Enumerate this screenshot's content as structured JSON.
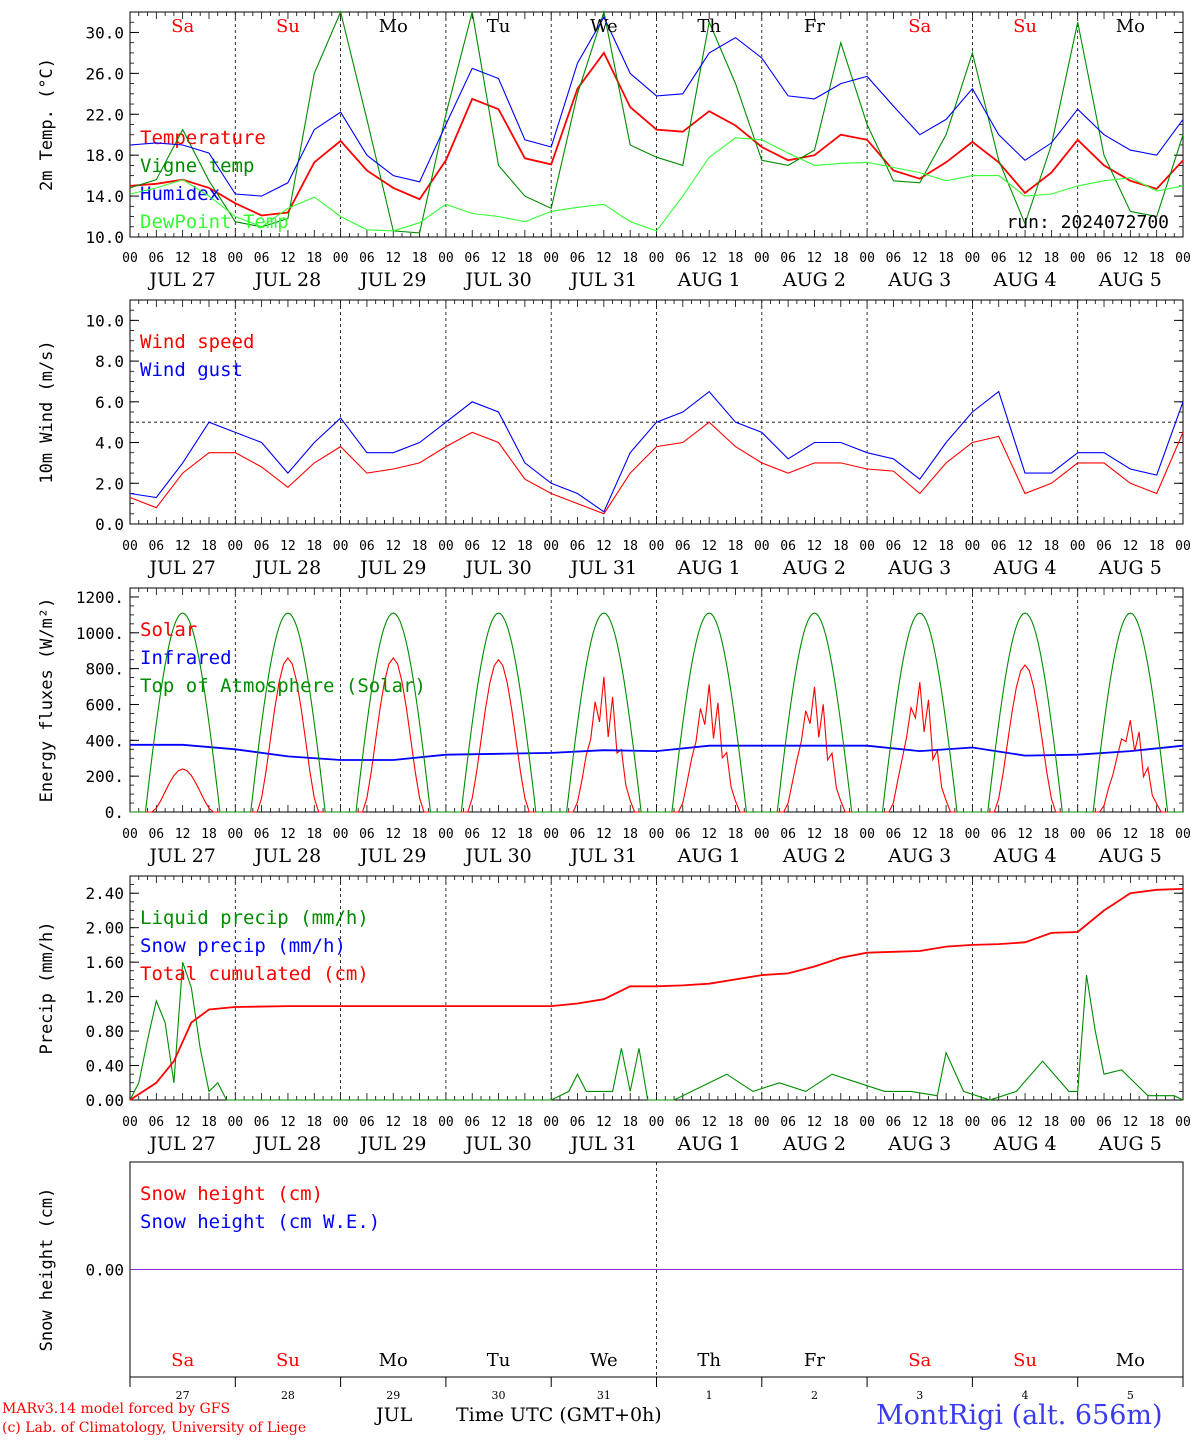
{
  "footer": {
    "model": "MARv3.14 model forced by GFS",
    "copyright": "(c) Lab. of Climatology, University of Liege",
    "axis_title": "Time UTC (GMT+0h)",
    "month": "JUL",
    "station": "MontRigi (alt. 656m)"
  },
  "colors": {
    "red": "#ff0000",
    "green": "#008c00",
    "blue": "#0000ff",
    "lightgreen": "#33ff33",
    "weekend": "#ff0000",
    "weekday": "#000000"
  },
  "chart_data": {
    "x_hour_ticks": [
      "00",
      "06",
      "12",
      "18"
    ],
    "x_end_tick": "00",
    "dates": [
      "JUL 27",
      "JUL 28",
      "JUL 29",
      "JUL 30",
      "JUL 31",
      "AUG  1",
      "AUG  2",
      "AUG  3",
      "AUG  4",
      "AUG  5"
    ],
    "days": [
      {
        "name": "Sa",
        "weekend": true
      },
      {
        "name": "Su",
        "weekend": true
      },
      {
        "name": "Mo",
        "weekend": false
      },
      {
        "name": "Tu",
        "weekend": false
      },
      {
        "name": "We",
        "weekend": false
      },
      {
        "name": "Th",
        "weekend": false
      },
      {
        "name": "Fr",
        "weekend": false
      },
      {
        "name": "Sa",
        "weekend": true
      },
      {
        "name": "Su",
        "weekend": true
      },
      {
        "name": "Mo",
        "weekend": false
      }
    ],
    "day_numbers": [
      "27",
      "28",
      "29",
      "30",
      "31",
      "1",
      "2",
      "3",
      "4",
      "5"
    ],
    "panels": [
      {
        "id": "temperature",
        "type": "line",
        "ylabel": "2m Temp. (°C)",
        "ylim": [
          10,
          32
        ],
        "yticks": [
          10.0,
          14.0,
          18.0,
          22.0,
          26.0,
          30.0
        ],
        "ytick_labels": [
          "10.0",
          "14.0",
          "18.0",
          "22.0",
          "26.0",
          "30.0"
        ],
        "annotation": "run: 2024072700",
        "series": [
          {
            "name": "Temperature",
            "color": "red",
            "hours": [
              0,
              6,
              12,
              18,
              24,
              30,
              36,
              42,
              48,
              54,
              60,
              66,
              72,
              78,
              84,
              90,
              96,
              102,
              108,
              114,
              120,
              126,
              132,
              138,
              144,
              150,
              156,
              162,
              168,
              174,
              180,
              186,
              192,
              198,
              204,
              210,
              216,
              222,
              228,
              234,
              240
            ],
            "values": [
              15.0,
              15.2,
              15.6,
              14.8,
              13.3,
              12.1,
              12.4,
              17.3,
              19.4,
              16.5,
              14.8,
              13.7,
              17.5,
              23.5,
              22.5,
              17.7,
              17.1,
              24.5,
              28.0,
              22.7,
              20.5,
              20.3,
              22.3,
              20.9,
              18.8,
              17.5,
              18.0,
              20.0,
              19.5,
              16.5,
              15.7,
              17.3,
              19.3,
              17.3,
              14.3,
              16.3,
              19.5,
              17.0,
              15.5,
              14.7,
              17.5
            ]
          },
          {
            "name": "Vigne temp",
            "color": "green",
            "hours": [
              0,
              6,
              12,
              18,
              24,
              30,
              36,
              42,
              48,
              54,
              60,
              66,
              72,
              78,
              84,
              90,
              96,
              102,
              108,
              114,
              120,
              126,
              132,
              138,
              144,
              150,
              156,
              162,
              168,
              174,
              180,
              186,
              192,
              198,
              204,
              210,
              216,
              222,
              228,
              234,
              240
            ],
            "values": [
              14.8,
              15.6,
              20.5,
              15.5,
              11.5,
              11.0,
              11.8,
              26.0,
              33.0,
              21.5,
              10.6,
              10.4,
              22.0,
              32.5,
              17.0,
              14.0,
              12.8,
              24.0,
              32.0,
              19.0,
              17.8,
              17.0,
              31.0,
              25.0,
              17.5,
              17.0,
              18.5,
              29.0,
              21.0,
              15.5,
              15.3,
              20.0,
              28.0,
              17.5,
              11.3,
              19.0,
              31.0,
              18.0,
              12.5,
              12.0,
              20.0
            ]
          },
          {
            "name": "Humidex",
            "color": "blue",
            "hours": [
              0,
              6,
              12,
              18,
              24,
              30,
              36,
              42,
              48,
              54,
              60,
              66,
              72,
              78,
              84,
              90,
              96,
              102,
              108,
              114,
              120,
              126,
              132,
              138,
              144,
              150,
              156,
              162,
              168,
              174,
              180,
              186,
              192,
              198,
              204,
              210,
              216,
              222,
              228,
              234,
              240
            ],
            "values": [
              19.0,
              19.2,
              19.0,
              18.2,
              14.2,
              14.0,
              15.3,
              20.5,
              22.2,
              18.0,
              16.0,
              15.4,
              21.0,
              26.5,
              25.5,
              19.5,
              18.8,
              27.0,
              31.5,
              26.0,
              23.8,
              24.0,
              28.0,
              29.5,
              27.5,
              23.8,
              23.5,
              25.0,
              25.7,
              22.8,
              20.0,
              21.5,
              24.5,
              20.0,
              17.5,
              19.2,
              22.5,
              20.0,
              18.5,
              18.0,
              21.5
            ]
          },
          {
            "name": "DewPoint Temp",
            "color": "lightgreen",
            "hours": [
              0,
              6,
              12,
              18,
              24,
              30,
              36,
              42,
              48,
              54,
              60,
              66,
              72,
              78,
              84,
              90,
              96,
              102,
              108,
              114,
              120,
              126,
              132,
              138,
              144,
              150,
              156,
              162,
              168,
              174,
              180,
              186,
              192,
              198,
              204,
              210,
              216,
              222,
              228,
              234,
              240
            ],
            "values": [
              14.2,
              14.8,
              15.6,
              14.0,
              12.0,
              11.0,
              12.8,
              13.9,
              12.0,
              10.7,
              10.6,
              11.4,
              13.2,
              12.3,
              12.0,
              11.5,
              12.5,
              12.9,
              13.2,
              11.5,
              10.6,
              14.0,
              17.8,
              19.7,
              19.5,
              18.2,
              17.0,
              17.2,
              17.3,
              16.8,
              16.3,
              15.5,
              16.0,
              16.0,
              14.0,
              14.2,
              15.0,
              15.5,
              15.8,
              14.5,
              15.0
            ]
          }
        ]
      },
      {
        "id": "wind",
        "type": "line",
        "ylabel": "10m Wind (m/s)",
        "ylim": [
          0,
          11
        ],
        "yticks": [
          0.0,
          2.0,
          4.0,
          6.0,
          8.0,
          10.0
        ],
        "ytick_labels": [
          "0.0",
          "2.0",
          "4.0",
          "6.0",
          "8.0",
          "10.0"
        ],
        "reference_line": 5.0,
        "series": [
          {
            "name": "Wind speed",
            "color": "red",
            "hours": [
              0,
              6,
              12,
              18,
              24,
              30,
              36,
              42,
              48,
              54,
              60,
              66,
              72,
              78,
              84,
              90,
              96,
              102,
              108,
              114,
              120,
              126,
              132,
              138,
              144,
              150,
              156,
              162,
              168,
              174,
              180,
              186,
              192,
              198,
              204,
              210,
              216,
              222,
              228,
              234,
              240
            ],
            "values": [
              1.3,
              0.8,
              2.5,
              3.5,
              3.5,
              2.8,
              1.8,
              3.0,
              3.8,
              2.5,
              2.7,
              3.0,
              3.8,
              4.5,
              4.0,
              2.2,
              1.5,
              1.0,
              0.5,
              2.5,
              3.8,
              4.0,
              5.0,
              3.8,
              3.0,
              2.5,
              3.0,
              3.0,
              2.7,
              2.6,
              1.5,
              3.0,
              4.0,
              4.3,
              1.5,
              2.0,
              3.0,
              3.0,
              2.0,
              1.5,
              4.5
            ]
          },
          {
            "name": "Wind gust",
            "color": "blue",
            "hours": [
              0,
              6,
              12,
              18,
              24,
              30,
              36,
              42,
              48,
              54,
              60,
              66,
              72,
              78,
              84,
              90,
              96,
              102,
              108,
              114,
              120,
              126,
              132,
              138,
              144,
              150,
              156,
              162,
              168,
              174,
              180,
              186,
              192,
              198,
              204,
              210,
              216,
              222,
              228,
              234,
              240
            ],
            "values": [
              1.5,
              1.3,
              3.0,
              5.0,
              4.5,
              4.0,
              2.5,
              4.0,
              5.2,
              3.5,
              3.5,
              4.0,
              5.0,
              6.0,
              5.5,
              3.0,
              2.0,
              1.5,
              0.6,
              3.5,
              5.0,
              5.5,
              6.5,
              5.0,
              4.5,
              3.2,
              4.0,
              4.0,
              3.5,
              3.2,
              2.2,
              4.0,
              5.5,
              6.5,
              2.5,
              2.5,
              3.5,
              3.5,
              2.7,
              2.4,
              6.0
            ]
          }
        ]
      },
      {
        "id": "energy",
        "type": "line",
        "ylabel": "Energy fluxes (W/m²)",
        "ylim": [
          0,
          1250
        ],
        "yticks": [
          0,
          200,
          400,
          600,
          800,
          1000,
          1200
        ],
        "ytick_labels": [
          "0.",
          "200.",
          "400.",
          "600.",
          "800.",
          "1000.",
          "1200."
        ],
        "series": [
          {
            "name": "Solar",
            "color": "red",
            "peaks": [
              240,
              860,
              860,
              850,
              760,
              720,
              710,
              740,
              820,
              530
            ]
          },
          {
            "name": "Infrared",
            "color": "blue",
            "hours": [
              0,
              12,
              24,
              36,
              48,
              60,
              72,
              84,
              96,
              108,
              120,
              132,
              144,
              156,
              168,
              180,
              192,
              204,
              216,
              228,
              240
            ],
            "values": [
              375,
              375,
              350,
              310,
              290,
              290,
              320,
              325,
              330,
              345,
              340,
              370,
              370,
              370,
              370,
              340,
              360,
              315,
              320,
              340,
              370
            ]
          },
          {
            "name": "Top of Atmosphere (Solar)",
            "color": "green",
            "daily_peak": 1110
          }
        ]
      },
      {
        "id": "precip",
        "type": "line",
        "ylabel": "Precip (mm/h)",
        "ylim": [
          0,
          2.6
        ],
        "yticks": [
          0.0,
          0.4,
          0.8,
          1.2,
          1.6,
          2.0,
          2.4
        ],
        "ytick_labels": [
          "0.00",
          "0.40",
          "0.80",
          "1.20",
          "1.60",
          "2.00",
          "2.40"
        ],
        "series": [
          {
            "name": "Liquid precip (mm/h)",
            "color": "green",
            "hours": [
              0,
              2,
              4,
              6,
              8,
              10,
              12,
              14,
              16,
              18,
              20,
              22,
              24,
              96,
              100,
              102,
              104,
              110,
              112,
              114,
              116,
              118,
              124,
              136,
              142,
              148,
              154,
              160,
              166,
              172,
              178,
              184,
              186,
              190,
              196,
              202,
              208,
              214,
              216,
              218,
              220,
              222,
              226,
              232,
              238,
              240
            ],
            "values": [
              0,
              0.2,
              0.7,
              1.15,
              0.9,
              0.2,
              1.6,
              1.3,
              0.6,
              0.1,
              0.2,
              0,
              0,
              0,
              0.1,
              0.3,
              0.1,
              0.1,
              0.6,
              0.1,
              0.6,
              0,
              0,
              0.3,
              0.1,
              0.2,
              0.1,
              0.3,
              0.2,
              0.1,
              0.1,
              0.05,
              0.55,
              0.1,
              0,
              0.1,
              0.45,
              0.1,
              0.1,
              1.45,
              0.8,
              0.3,
              0.35,
              0.05,
              0.05,
              0
            ]
          },
          {
            "name": "Snow precip (mm/h)",
            "color": "blue",
            "values": []
          },
          {
            "name": "Total cumulated (cm)",
            "color": "red",
            "hours": [
              0,
              6,
              10,
              14,
              18,
              24,
              36,
              48,
              60,
              72,
              84,
              96,
              102,
              108,
              114,
              120,
              126,
              132,
              144,
              150,
              156,
              162,
              168,
              174,
              180,
              186,
              192,
              198,
              204,
              210,
              216,
              222,
              228,
              234,
              240
            ],
            "values": [
              0,
              0.2,
              0.45,
              0.9,
              1.05,
              1.08,
              1.09,
              1.09,
              1.09,
              1.09,
              1.09,
              1.09,
              1.12,
              1.17,
              1.32,
              1.32,
              1.33,
              1.35,
              1.45,
              1.47,
              1.55,
              1.65,
              1.71,
              1.72,
              1.73,
              1.78,
              1.8,
              1.81,
              1.83,
              1.94,
              1.95,
              2.2,
              2.4,
              2.44,
              2.45
            ]
          }
        ]
      },
      {
        "id": "snow",
        "type": "line",
        "ylabel": "Snow height (cm)",
        "ylim": [
          -1,
          1
        ],
        "yticks": [
          0.0
        ],
        "ytick_labels": [
          "0.00"
        ],
        "series": [
          {
            "name": "Snow height (cm)",
            "color": "red",
            "values": [
              0,
              0
            ]
          },
          {
            "name": "Snow height (cm W.E.)",
            "color": "blue",
            "values": [
              0,
              0
            ]
          }
        ]
      }
    ]
  }
}
